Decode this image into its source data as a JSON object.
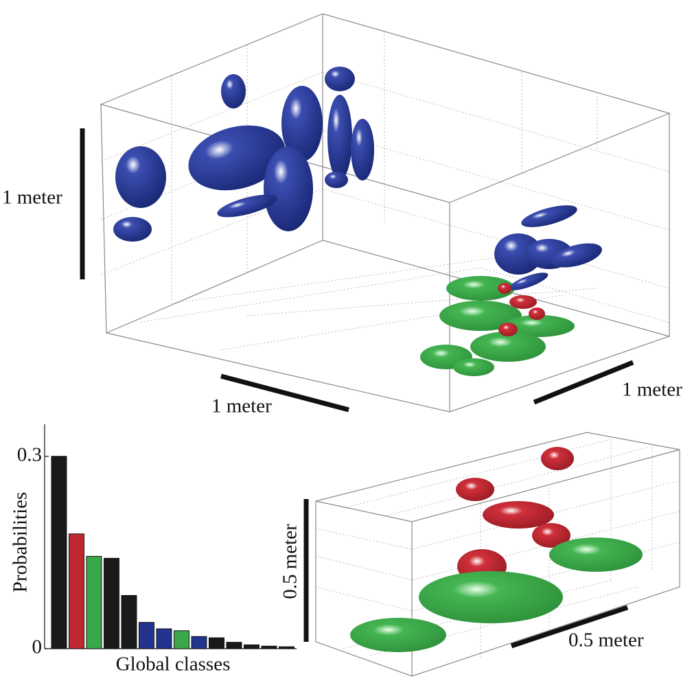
{
  "chart_data": {
    "type": "bar",
    "xlabel": "Global classes",
    "ylabel": "Probabilities",
    "categories": [
      null,
      null,
      null,
      null,
      null,
      null,
      null,
      null,
      null,
      null,
      null,
      null,
      null,
      null
    ],
    "values": [
      0.3,
      0.179,
      0.144,
      0.141,
      0.083,
      0.041,
      0.031,
      0.028,
      0.019,
      0.017,
      0.01,
      0.006,
      0.004,
      0.003
    ],
    "colors": [
      "#1a1a1a",
      "#c0282f",
      "#3aa84a",
      "#1a1a1a",
      "#1a1a1a",
      "#23348f",
      "#23348f",
      "#3aa84a",
      "#23348f",
      "#1a1a1a",
      "#1a1a1a",
      "#1a1a1a",
      "#1a1a1a",
      "#1a1a1a"
    ],
    "ylim": [
      0,
      0.35
    ],
    "yticks": [
      0,
      0.3
    ]
  },
  "scale_labels": {
    "top_vertical": "1 meter",
    "top_left_depth": "1 meter",
    "top_right_depth": "1 meter",
    "bottom_vertical": "0.5 meter",
    "bottom_depth": "0.5 meter"
  }
}
